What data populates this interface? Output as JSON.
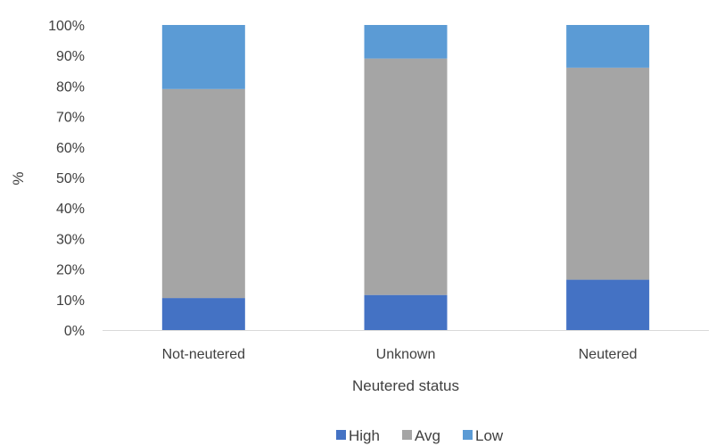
{
  "chart_data": {
    "type": "bar",
    "stacked": true,
    "categories": [
      "Not-neutered",
      "Unknown",
      "Neutered"
    ],
    "series": [
      {
        "name": "High",
        "values": [
          10.5,
          11.5,
          16.5
        ],
        "color": "#4472C4"
      },
      {
        "name": "Avg",
        "values": [
          68.5,
          77.5,
          69.5
        ],
        "color": "#A5A5A5"
      },
      {
        "name": "Low",
        "values": [
          21.0,
          11.0,
          14.0
        ],
        "color": "#5B9BD5"
      }
    ],
    "xlabel": "Neutered status",
    "ylabel": "%",
    "ylim": [
      0,
      100
    ],
    "yticks": [
      "0%",
      "10%",
      "20%",
      "30%",
      "40%",
      "50%",
      "60%",
      "70%",
      "80%",
      "90%",
      "100%"
    ],
    "grid": false,
    "legend_position": "bottom"
  }
}
